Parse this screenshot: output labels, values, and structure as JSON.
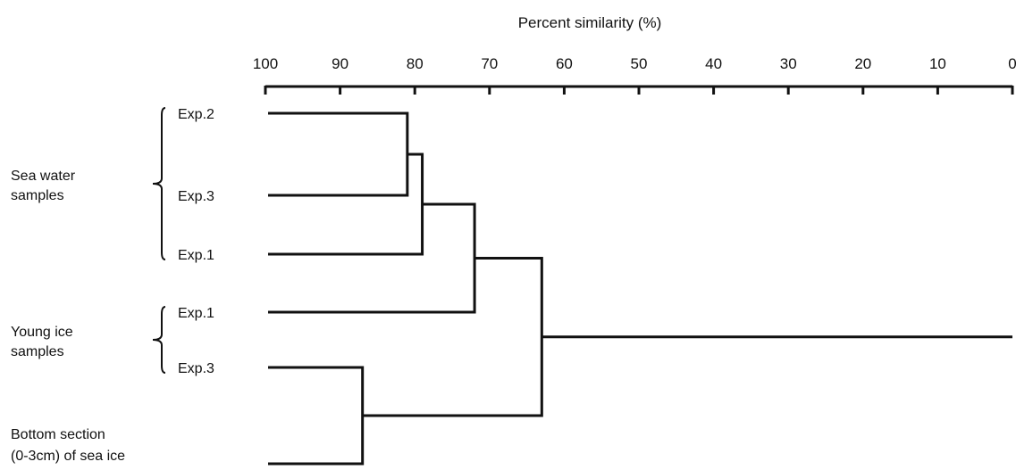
{
  "chart_data": {
    "type": "dendrogram",
    "xlabel": "Percent similarity (%)",
    "xlim": [
      100,
      0
    ],
    "ticks": [
      100,
      90,
      80,
      70,
      60,
      50,
      40,
      30,
      20,
      10,
      0
    ],
    "leaves": [
      {
        "id": "sw2",
        "label": "Exp.2"
      },
      {
        "id": "sw3",
        "label": "Exp.3"
      },
      {
        "id": "sw1",
        "label": "Exp.1"
      },
      {
        "id": "yi1",
        "label": "Exp.1"
      },
      {
        "id": "yi3",
        "label": "Exp.3"
      },
      {
        "id": "bs",
        "label": ""
      }
    ],
    "merges": [
      {
        "id": "m1",
        "left": "sw2",
        "right": "sw3",
        "similarity": 81
      },
      {
        "id": "m2",
        "left": "m1",
        "right": "sw1",
        "similarity": 79
      },
      {
        "id": "m3",
        "left": "m2",
        "right": "yi1",
        "similarity": 72
      },
      {
        "id": "m4",
        "left": "yi3",
        "right": "bs",
        "similarity": 87
      },
      {
        "id": "m5",
        "left": "m3",
        "right": "m4",
        "similarity": 63
      }
    ],
    "root_line_to": 0,
    "groups": [
      {
        "lines": [
          "Sea water",
          "samples"
        ],
        "leaves": [
          "sw2",
          "sw1"
        ],
        "brace": true
      },
      {
        "lines": [
          "Young ice",
          "samples"
        ],
        "leaves": [
          "yi1",
          "yi3"
        ],
        "brace": true
      },
      {
        "lines": [
          "Bottom section",
          " (0-3cm) of  sea ice"
        ],
        "leaves": [
          "bs"
        ],
        "brace": false
      }
    ]
  }
}
